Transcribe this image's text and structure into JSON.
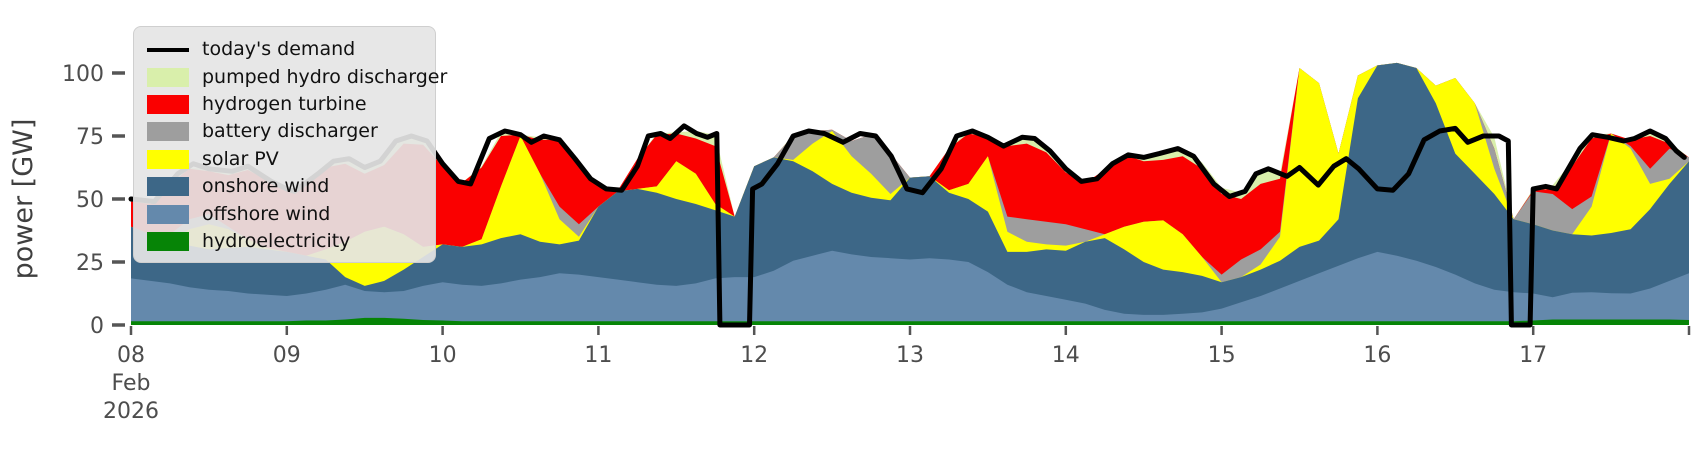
{
  "axes": {
    "ylabel": "power [GW]",
    "yticks": [
      0,
      25,
      50,
      75,
      100
    ],
    "xticks": [
      {
        "t": 8,
        "label": "08",
        "sub": [
          "Feb",
          "2026"
        ]
      },
      {
        "t": 9,
        "label": "09"
      },
      {
        "t": 10,
        "label": "10"
      },
      {
        "t": 11,
        "label": "11"
      },
      {
        "t": 12,
        "label": "12"
      },
      {
        "t": 13,
        "label": "13"
      },
      {
        "t": 14,
        "label": "14"
      },
      {
        "t": 15,
        "label": "15"
      },
      {
        "t": 16,
        "label": "16"
      },
      {
        "t": 17,
        "label": "17"
      },
      {
        "t": 18,
        "label": ""
      }
    ],
    "text_color": "#4d4d4d"
  },
  "legend": {
    "items": [
      {
        "key": "demand",
        "label": "today's demand",
        "swatch": "line"
      },
      {
        "key": "pumped",
        "label": "pumped hydro discharger",
        "swatch": "patch"
      },
      {
        "key": "hydrogen",
        "label": "hydrogen turbine",
        "swatch": "patch"
      },
      {
        "key": "battery",
        "label": "battery discharger",
        "swatch": "patch"
      },
      {
        "key": "solar",
        "label": "solar PV",
        "swatch": "patch"
      },
      {
        "key": "onshore",
        "label": "onshore wind",
        "swatch": "patch"
      },
      {
        "key": "offshore",
        "label": "offshore wind",
        "swatch": "patch"
      },
      {
        "key": "hydro",
        "label": "hydroelectricity",
        "swatch": "patch"
      }
    ]
  },
  "chart_data": {
    "type": "area",
    "title": "",
    "xlabel": "",
    "ylabel": "power [GW]",
    "x_unit": "day of Feb 2026",
    "x_start": 8.0,
    "x_step": 0.125,
    "x_end": 18.0,
    "ylim": [
      0,
      115
    ],
    "grid": false,
    "legend_position": "upper left",
    "stack_order_bottom_to_top": [
      "hydro",
      "offshore",
      "onshore",
      "solar",
      "battery",
      "hydrogen",
      "pumped"
    ],
    "series": [
      {
        "key": "hydro",
        "name": "hydroelectricity",
        "color": "#068406",
        "values": [
          1.5,
          1.5,
          1.5,
          1.5,
          1.5,
          1.5,
          1.5,
          1.5,
          1.5,
          1.8,
          1.8,
          2.2,
          2.8,
          2.8,
          2.5,
          2,
          1.8,
          1.5,
          1.5,
          1.5,
          1.5,
          1.5,
          1.5,
          1.5,
          1.5,
          1.5,
          1.5,
          1.5,
          1.5,
          1.5,
          1.5,
          1.5,
          1.5,
          1.5,
          1.5,
          1.5,
          1.5,
          1.5,
          1.5,
          1.5,
          1.5,
          1.5,
          1.5,
          1.5,
          1.5,
          1.5,
          1.5,
          1.5,
          1.5,
          1.5,
          1.5,
          1.5,
          1.5,
          1.5,
          1.5,
          1.5,
          1.5,
          1.5,
          1.5,
          1.5,
          1.5,
          1.5,
          1.5,
          1.5,
          1.5,
          1.5,
          1.5,
          1.5,
          1.5,
          1.5,
          1.5,
          1.5,
          1.8,
          2.2,
          2.2,
          2.2,
          2.2,
          2.2,
          2.2,
          2.2,
          2
        ]
      },
      {
        "key": "offshore",
        "name": "offshore wind",
        "color": "#6489ac",
        "values": [
          17,
          16,
          15,
          13.5,
          12.5,
          12,
          11,
          10.5,
          10,
          10.7,
          12.2,
          13.8,
          10.7,
          10.2,
          11,
          13.5,
          15.2,
          14.5,
          14,
          15,
          16.5,
          17.5,
          19,
          18.5,
          17.5,
          16.5,
          15.5,
          14.5,
          14,
          15,
          17,
          17.5,
          17.5,
          20,
          24,
          26,
          28,
          26.5,
          25.5,
          25,
          24.5,
          25,
          24.5,
          23.5,
          19.5,
          14.5,
          11.5,
          10,
          8.5,
          7,
          4.5,
          3,
          2.5,
          2.5,
          3,
          3.5,
          5,
          7.5,
          10,
          13,
          16,
          19,
          22,
          25,
          27.5,
          26,
          24,
          21.5,
          18.5,
          15,
          12.5,
          11.5,
          10.7,
          8.8,
          10.6,
          10.8,
          10.4,
          10.3,
          12.3,
          15.3,
          18.5
        ]
      },
      {
        "key": "onshore",
        "name": "onshore wind",
        "color": "#3d6787",
        "values": [
          20.5,
          18.5,
          17,
          16.5,
          16,
          17,
          18.5,
          18,
          17.5,
          15,
          12,
          3,
          2,
          4.5,
          8.5,
          11.5,
          15,
          15,
          16.5,
          18,
          18,
          14,
          11.5,
          13.5,
          28,
          35,
          37,
          36.5,
          34.5,
          31.5,
          27,
          24,
          44,
          45,
          39.5,
          33.5,
          26.5,
          24.5,
          23.5,
          23,
          32.5,
          32.5,
          26.5,
          25,
          24,
          13,
          16,
          18.5,
          19.5,
          24.5,
          28.5,
          25.5,
          21,
          18,
          16.5,
          14.5,
          10.5,
          10,
          10.5,
          11,
          13.5,
          13,
          18.5,
          63.5,
          74,
          76.5,
          76.5,
          65,
          48,
          43.5,
          38,
          29,
          27.5,
          26.5,
          23.2,
          22.5,
          23.9,
          25.5,
          31.5,
          38.5,
          44.5
        ]
      },
      {
        "key": "solar",
        "name": "solar PV",
        "color": "#ffff00",
        "values": [
          0,
          0,
          0,
          6.5,
          10,
          7.5,
          3,
          0.5,
          0,
          0,
          4,
          14,
          21.5,
          21.5,
          14,
          4,
          0,
          0,
          2,
          20.5,
          39,
          27,
          10,
          1.5,
          0,
          0,
          0,
          2.5,
          15,
          12,
          2.5,
          0,
          0,
          0,
          0.5,
          11,
          21,
          14.5,
          9.5,
          2.5,
          0,
          0,
          1,
          6,
          22,
          8,
          4,
          2,
          2,
          0,
          1.5,
          9,
          16,
          19.5,
          15,
          7.5,
          0,
          0,
          2,
          9.5,
          71,
          62.5,
          26,
          9,
          0,
          0,
          0,
          7,
          30,
          28,
          10,
          0,
          0,
          0,
          0,
          11.5,
          39.5,
          32,
          10,
          2,
          0
        ]
      },
      {
        "key": "battery",
        "name": "battery discharger",
        "color": "#9e9e9e",
        "values": [
          0,
          0,
          2.5,
          4,
          4,
          1,
          0,
          0,
          0,
          0,
          0,
          0,
          0,
          0,
          0,
          0,
          0,
          0,
          0,
          0,
          0,
          0,
          5,
          5,
          0,
          0,
          0,
          0,
          0,
          0,
          0,
          0,
          0,
          0,
          9.5,
          5,
          0.5,
          6,
          15.5,
          16,
          0,
          0,
          0,
          0,
          0,
          6,
          9,
          9,
          8.5,
          5,
          0,
          0,
          0,
          0,
          0,
          0,
          3,
          7,
          6,
          2,
          0,
          0,
          0,
          0,
          0,
          0,
          0,
          0,
          0,
          0,
          8,
          0,
          13,
          14.5,
          10,
          4,
          0,
          1,
          6,
          12,
          1.5
        ]
      },
      {
        "key": "hydrogen",
        "name": "hydrogen turbine",
        "color": "#fa0000",
        "values": [
          10,
          12,
          20,
          20,
          17,
          20.5,
          27.5,
          27,
          24.5,
          27.5,
          32.5,
          31,
          23,
          24.5,
          36,
          40.5,
          31,
          25.5,
          28.5,
          20,
          0.5,
          13.5,
          26.5,
          24,
          8,
          0.5,
          12,
          20.5,
          11,
          14,
          23,
          0,
          0,
          0,
          0,
          0,
          0,
          0,
          0,
          0,
          0,
          0,
          16.5,
          20,
          7.5,
          28,
          30,
          27.5,
          20.5,
          18.5,
          25.5,
          28.5,
          24,
          24,
          31,
          35,
          32,
          24,
          26,
          21,
          0,
          0,
          0,
          0,
          0,
          0,
          0,
          0,
          0,
          0,
          0,
          0,
          0.5,
          2,
          17,
          23,
          0,
          2.5,
          13,
          2,
          0
        ]
      },
      {
        "key": "pumped",
        "name": "pumped hydro discharger",
        "color": "#d9efab",
        "values": [
          0.5,
          0.5,
          0.5,
          0.5,
          1,
          1.5,
          1.5,
          0.5,
          0.5,
          0.5,
          1.5,
          2,
          2.5,
          2.5,
          3,
          2.5,
          1,
          0,
          0.5,
          1.5,
          0,
          1,
          0,
          0,
          0,
          0,
          0,
          0.5,
          0.5,
          3,
          4.5,
          0,
          0,
          0,
          0.5,
          0,
          0,
          0,
          0,
          0,
          0,
          0,
          0,
          1,
          0,
          0.5,
          2.5,
          2,
          1.5,
          0,
          0,
          0,
          2,
          2.5,
          3,
          2.5,
          2.5,
          2.5,
          5.5,
          2,
          0,
          0,
          0,
          0,
          0,
          0,
          0,
          0,
          0,
          0,
          4.5,
          0,
          0.5,
          1.5,
          2,
          1.5,
          0,
          0,
          2,
          0.5,
          0
        ]
      }
    ],
    "demand_line": {
      "key": "demand",
      "name": "today's demand",
      "color": "#000000",
      "points": [
        [
          8.0,
          50
        ],
        [
          8.15,
          49
        ],
        [
          8.3,
          60
        ],
        [
          8.4,
          64
        ],
        [
          8.5,
          62
        ],
        [
          8.65,
          61
        ],
        [
          8.75,
          63
        ],
        [
          8.9,
          57
        ],
        [
          9.0,
          54
        ],
        [
          9.05,
          53
        ],
        [
          9.2,
          60
        ],
        [
          9.3,
          65
        ],
        [
          9.4,
          66
        ],
        [
          9.5,
          62.5
        ],
        [
          9.6,
          65
        ],
        [
          9.7,
          73
        ],
        [
          9.8,
          75
        ],
        [
          9.9,
          73
        ],
        [
          10.0,
          64
        ],
        [
          10.1,
          57
        ],
        [
          10.18,
          56
        ],
        [
          10.3,
          74
        ],
        [
          10.4,
          77
        ],
        [
          10.5,
          75.5
        ],
        [
          10.57,
          72.5
        ],
        [
          10.65,
          75
        ],
        [
          10.75,
          73.5
        ],
        [
          10.85,
          66
        ],
        [
          10.95,
          58
        ],
        [
          11.05,
          54
        ],
        [
          11.15,
          53.5
        ],
        [
          11.25,
          63
        ],
        [
          11.32,
          75
        ],
        [
          11.4,
          76
        ],
        [
          11.46,
          74
        ],
        [
          11.55,
          79
        ],
        [
          11.63,
          76
        ],
        [
          11.7,
          74.5
        ],
        [
          11.76,
          76
        ],
        [
          11.78,
          0
        ],
        [
          11.97,
          0
        ],
        [
          11.99,
          54
        ],
        [
          12.05,
          56
        ],
        [
          12.15,
          64
        ],
        [
          12.25,
          75
        ],
        [
          12.35,
          77
        ],
        [
          12.45,
          76
        ],
        [
          12.57,
          72.5
        ],
        [
          12.68,
          76
        ],
        [
          12.78,
          75
        ],
        [
          12.88,
          67
        ],
        [
          12.98,
          54
        ],
        [
          13.08,
          52.5
        ],
        [
          13.2,
          62
        ],
        [
          13.3,
          75
        ],
        [
          13.4,
          77
        ],
        [
          13.5,
          74.5
        ],
        [
          13.6,
          71
        ],
        [
          13.72,
          74.5
        ],
        [
          13.8,
          74
        ],
        [
          13.9,
          69
        ],
        [
          14.0,
          62
        ],
        [
          14.1,
          57
        ],
        [
          14.2,
          58
        ],
        [
          14.3,
          64
        ],
        [
          14.4,
          67.5
        ],
        [
          14.5,
          66.5
        ],
        [
          14.6,
          68
        ],
        [
          14.72,
          70
        ],
        [
          14.82,
          67
        ],
        [
          14.95,
          56
        ],
        [
          15.05,
          51
        ],
        [
          15.15,
          53
        ],
        [
          15.22,
          60
        ],
        [
          15.3,
          62
        ],
        [
          15.42,
          59
        ],
        [
          15.5,
          62.5
        ],
        [
          15.62,
          55.5
        ],
        [
          15.72,
          63
        ],
        [
          15.8,
          66
        ],
        [
          15.88,
          62
        ],
        [
          16.0,
          54
        ],
        [
          16.1,
          53.5
        ],
        [
          16.2,
          60
        ],
        [
          16.3,
          73.5
        ],
        [
          16.4,
          77
        ],
        [
          16.5,
          78
        ],
        [
          16.58,
          72.5
        ],
        [
          16.68,
          75
        ],
        [
          16.78,
          75
        ],
        [
          16.84,
          73
        ],
        [
          16.86,
          0
        ],
        [
          16.98,
          0
        ],
        [
          17.0,
          54
        ],
        [
          17.08,
          55
        ],
        [
          17.15,
          54
        ],
        [
          17.3,
          70
        ],
        [
          17.38,
          75.5
        ],
        [
          17.48,
          74.5
        ],
        [
          17.58,
          73
        ],
        [
          17.65,
          74
        ],
        [
          17.75,
          77
        ],
        [
          17.85,
          74
        ],
        [
          17.92,
          69
        ],
        [
          17.97,
          66.5
        ]
      ]
    }
  },
  "geometry_note": "stacked area chart, demand drops to 0 during data gaps Feb 11.78-11.98 and Feb 16.86-16.98"
}
